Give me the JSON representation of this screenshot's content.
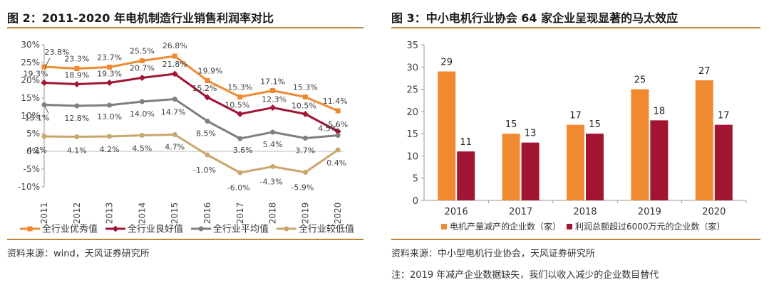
{
  "left": {
    "title": "图 2：2011-2020 年电机制造行业销售利润率对比",
    "source": "资料来源：wind，天风证券研究所"
  },
  "right": {
    "title": "图 3：中小电机行业协会 64 家企业呈现显著的马太效应",
    "source": "资料来源：中小型电机行业协会，天风证券研究所",
    "note": "注：2019 年减产企业数据缺失，我们以收入减少的企业数目替代"
  },
  "chart_data": [
    {
      "type": "line",
      "x": [
        "2011",
        "2012",
        "2013",
        "2014",
        "2015",
        "2016",
        "2017",
        "2018",
        "2019",
        "2020"
      ],
      "ylim": [
        -10,
        30
      ],
      "yticks": [
        "-10%",
        "-5%",
        "0%",
        "5%",
        "10%",
        "15%",
        "20%",
        "25%",
        "30%"
      ],
      "legend_position": "bottom",
      "grid": false,
      "series": [
        {
          "name": "全行业优秀值",
          "color": "#f08a31",
          "marker": "square",
          "values": [
            23.8,
            23.3,
            23.7,
            25.5,
            26.8,
            19.9,
            15.3,
            17.1,
            15.3,
            11.4
          ],
          "labels": [
            "23.8%",
            "23.3%",
            "23.7%",
            "25.5%",
            "26.8%",
            "19.9%",
            "15.3%",
            "17.1%",
            "15.3%",
            "11.4%"
          ]
        },
        {
          "name": "全行业良好值",
          "color": "#a11432",
          "marker": "diamond",
          "values": [
            19.3,
            18.9,
            19.3,
            20.7,
            21.8,
            15.2,
            10.5,
            12.3,
            10.5,
            5.6
          ],
          "labels": [
            "19.3%",
            "18.9%",
            "19.3%",
            "20.7%",
            "21.8%",
            "15.2%",
            "10.5%",
            "12.3%",
            "10.5%",
            "5.6%"
          ]
        },
        {
          "name": "全行业平均值",
          "color": "#7f7f7f",
          "marker": "circle",
          "values": [
            13.1,
            12.8,
            13.0,
            14.0,
            14.7,
            8.5,
            3.6,
            5.4,
            3.7,
            4.5
          ],
          "labels": [
            "13.1%",
            "12.8%",
            "13.0%",
            "14.0%",
            "14.7%",
            "8.5%",
            "3.6%",
            "5.4%",
            "3.7%",
            "4.5%"
          ]
        },
        {
          "name": "全行业较低值",
          "color": "#c9a66b",
          "marker": "circle",
          "values": [
            4.2,
            4.1,
            4.2,
            4.5,
            4.7,
            -1.0,
            -6.0,
            -4.3,
            -5.9,
            0.4
          ],
          "labels": [
            "4.2%",
            "4.1%",
            "4.2%",
            "4.5%",
            "4.7%",
            "-1.0%",
            "-6.0%",
            "-4.3%",
            "-5.9%",
            "0.4%"
          ]
        }
      ]
    },
    {
      "type": "bar",
      "categories": [
        "2016",
        "2017",
        "2018",
        "2019",
        "2020"
      ],
      "ylim": [
        0,
        35
      ],
      "yticks": [
        "0",
        "5",
        "10",
        "15",
        "20",
        "25",
        "30",
        "35"
      ],
      "legend_position": "bottom",
      "grid": false,
      "series": [
        {
          "name": "电机产量减产的企业数（家）",
          "color": "#f08a31",
          "values": [
            29,
            15,
            17,
            25,
            27
          ]
        },
        {
          "name": "利润总额超过6000万元的企业数（家）",
          "color": "#a11432",
          "values": [
            11,
            13,
            15,
            18,
            17
          ]
        }
      ]
    }
  ]
}
